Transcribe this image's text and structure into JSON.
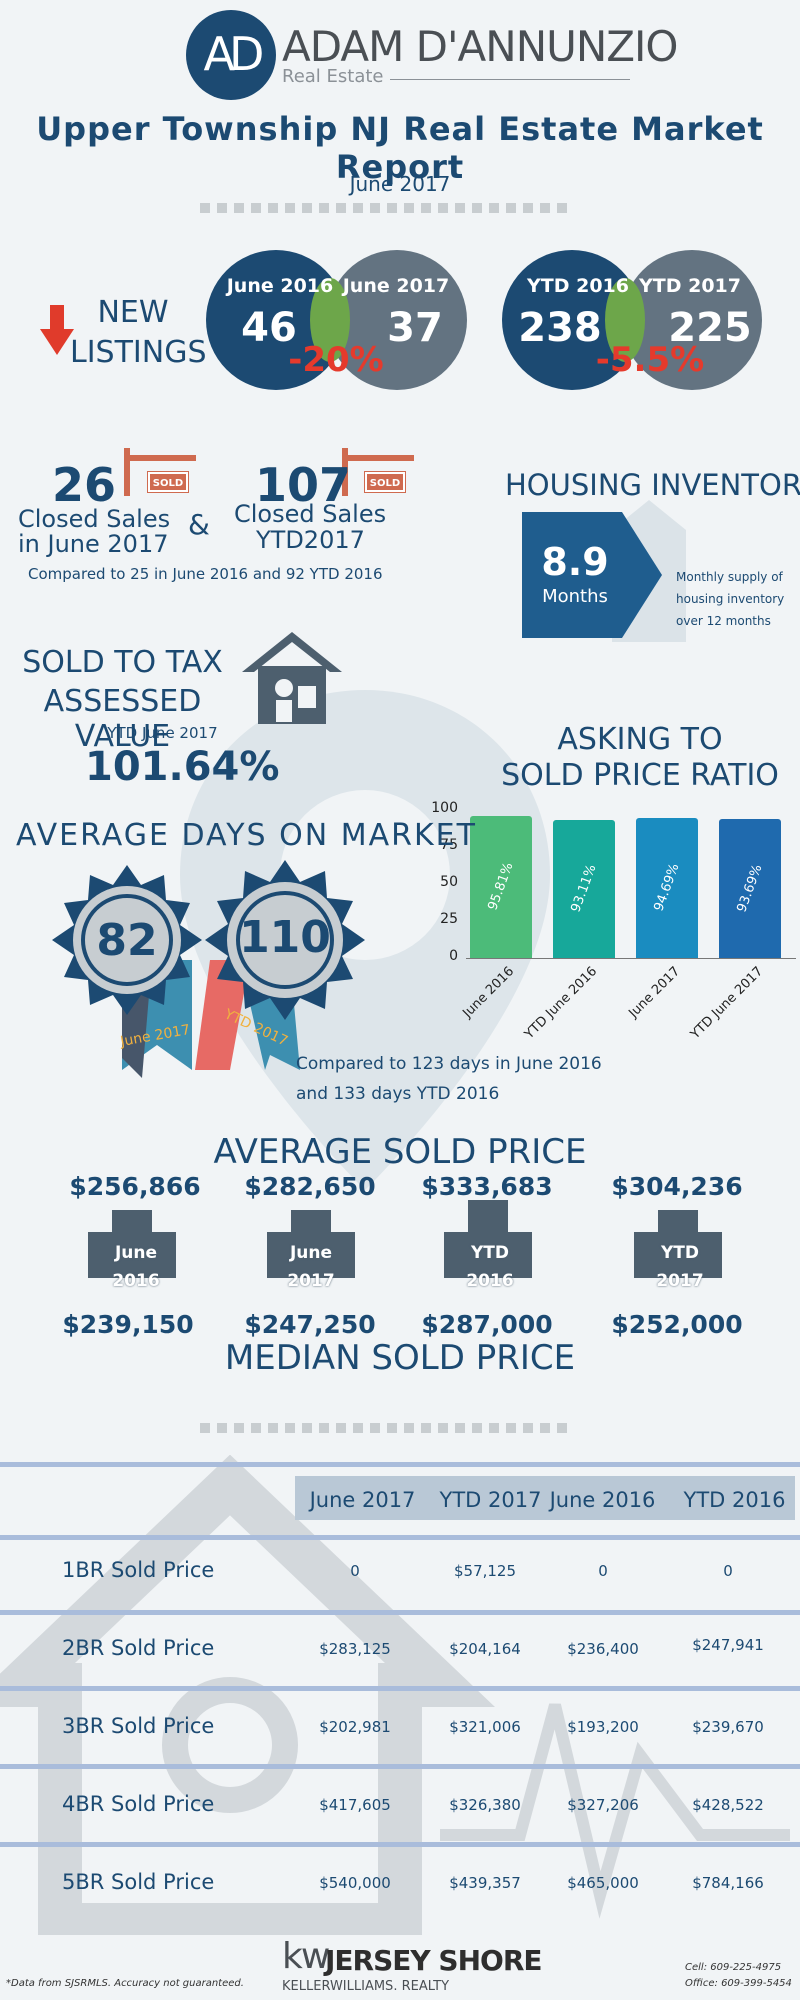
{
  "brand": {
    "logo_initials": "AD",
    "name": "ADAM D'ANNUNZIO",
    "subtitle": "Real Estate"
  },
  "report": {
    "title": "Upper Township NJ Real Estate Market Report",
    "period": "June 2017"
  },
  "new_listings": {
    "label_line1": "NEW",
    "label_line2": "LISTINGS",
    "monthly": {
      "left_label": "June 2016",
      "left_value": "46",
      "right_label": "June 2017",
      "right_value": "37",
      "change": "-20%"
    },
    "ytd": {
      "left_label": "YTD 2016",
      "left_value": "238",
      "right_label": "YTD 2017",
      "right_value": "225",
      "change": "-5.5%"
    }
  },
  "closed_sales": {
    "month_value": "26",
    "month_label_1": "Closed Sales",
    "month_label_2": "in June 2017",
    "ytd_value": "107",
    "ytd_label_1": "Closed Sales",
    "ytd_label_2": "YTD2017",
    "amp": "&",
    "sold_tag": "SOLD",
    "comparison": "Compared to 25 in June 2016 and 92 YTD 2016"
  },
  "housing_inventory": {
    "title": "HOUSING INVENTORY",
    "value": "8.9",
    "unit": "Months",
    "note_1": "Monthly supply of",
    "note_2": "housing inventory",
    "note_3": "over 12 months"
  },
  "tax_assessed": {
    "title_1": "SOLD TO TAX",
    "title_2": "ASSESSED VALUE",
    "subtitle": "YTD June 2017",
    "value": "101.64%"
  },
  "asking_ratio": {
    "title_1": "ASKING TO",
    "title_2": "SOLD PRICE RATIO"
  },
  "chart_data": {
    "type": "bar",
    "categories": [
      "June 2016",
      "YTD June 2016",
      "June 2017",
      "YTD June 2017"
    ],
    "values": [
      95.81,
      93.11,
      94.69,
      93.69
    ],
    "value_labels": [
      "95.81%",
      "93.11%",
      "94.69%",
      "93.69%"
    ],
    "yticks": [
      "100",
      "75",
      "50",
      "25",
      "0"
    ],
    "ylim": [
      0,
      100
    ],
    "colors": [
      "#4cbb79",
      "#17a89a",
      "#1a8cc0",
      "#1f6aae"
    ]
  },
  "days_on_market": {
    "title": "AVERAGE DAYS ON MARKET",
    "june_value": "82",
    "june_label": "June 2017",
    "ytd_value": "110",
    "ytd_label": "YTD 2017",
    "comparison_1": "Compared to 123 days in June 2016",
    "comparison_2": "and 133 days YTD 2016"
  },
  "prices": {
    "avg_title": "AVERAGE SOLD PRICE",
    "median_title": "MEDIAN SOLD PRICE",
    "items": [
      {
        "avg": "$256,866",
        "label_1": "June",
        "label_2": "2016",
        "median": "$239,150"
      },
      {
        "avg": "$282,650",
        "label_1": "June",
        "label_2": "2017",
        "median": "$247,250"
      },
      {
        "avg": "$333,683",
        "label_1": "YTD",
        "label_2": "2016",
        "median": "$287,000"
      },
      {
        "avg": "$304,236",
        "label_1": "YTD",
        "label_2": "2017",
        "median": "$252,000"
      }
    ]
  },
  "table": {
    "headers": [
      "June 2017",
      "YTD 2017",
      "June 2016",
      "YTD 2016"
    ],
    "rows": [
      {
        "label": "1BR Sold Price",
        "values": [
          "0",
          "$57,125",
          "0",
          "0"
        ]
      },
      {
        "label": "2BR Sold Price",
        "values": [
          "$283,125",
          "$204,164",
          "$236,400",
          "$247,941"
        ]
      },
      {
        "label": "3BR Sold Price",
        "values": [
          "$202,981",
          "$321,006",
          "$193,200",
          "$239,670"
        ]
      },
      {
        "label": "4BR Sold Price",
        "values": [
          "$417,605",
          "$326,380",
          "$327,206",
          "$428,522"
        ]
      },
      {
        "label": "5BR Sold Price",
        "values": [
          "$540,000",
          "$439,357",
          "$465,000",
          "$784,166"
        ]
      }
    ]
  },
  "footer": {
    "disclaimer": "*Data from SJSRMLS.  Accuracy not guaranteed.",
    "kw_mark": "kw",
    "office_name": "JERSEY SHORE",
    "brokerage": "KELLERWILLIAMS. REALTY",
    "cell": "Cell: 609-225-4975",
    "office": "Office: 609-399-5454"
  }
}
